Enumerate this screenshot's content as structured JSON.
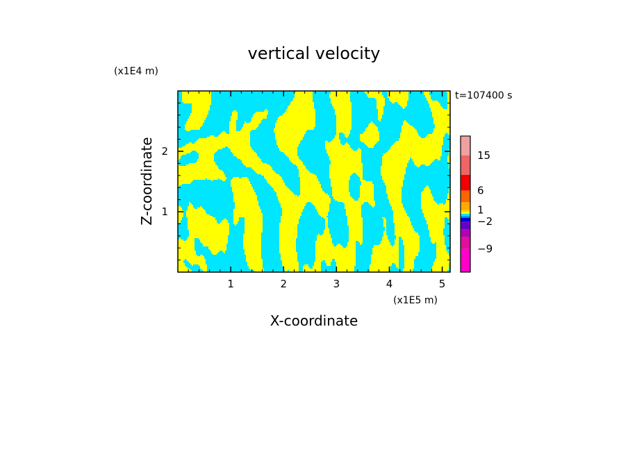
{
  "chart_data": {
    "type": "heatmap",
    "title": "vertical velocity",
    "xlabel": "X-coordinate",
    "ylabel": "Z-coordinate",
    "x_unit": "(x1E5 m)",
    "y_unit": "(x1E4 m)",
    "time_label": "t=107400 s",
    "xlim": [
      0,
      5.15
    ],
    "ylim": [
      0,
      3.0
    ],
    "x_ticks": [
      1,
      2,
      3,
      4,
      5
    ],
    "y_ticks": [
      1,
      2
    ],
    "colorbar": {
      "tick_labels": [
        "15",
        "6",
        "1",
        "−2",
        "−9"
      ],
      "levels": [
        {
          "value": -15,
          "color": "#ff00c8"
        },
        {
          "value": -9,
          "color": "#e0109c"
        },
        {
          "value": -6,
          "color": "#b400b4"
        },
        {
          "value": -4,
          "color": "#6400c8"
        },
        {
          "value": -2,
          "color": "#0000c8"
        },
        {
          "value": -1,
          "color": "#00a0ff"
        },
        {
          "value": -0.5,
          "color": "#00e6ff"
        },
        {
          "value": 0,
          "color": "#ffff00"
        },
        {
          "value": 0.5,
          "color": "#ffd200"
        },
        {
          "value": 1,
          "color": "#ffaa00"
        },
        {
          "value": 3,
          "color": "#ff6400"
        },
        {
          "value": 6,
          "color": "#f00000"
        },
        {
          "value": 10,
          "color": "#f06464"
        },
        {
          "value": 15,
          "color": "#f0a0a0"
        },
        {
          "value": 20,
          "color": "#fae6e6"
        }
      ]
    },
    "dominant_colors": {
      "positive": "#ffff00",
      "negative": "#00e6ff"
    }
  }
}
